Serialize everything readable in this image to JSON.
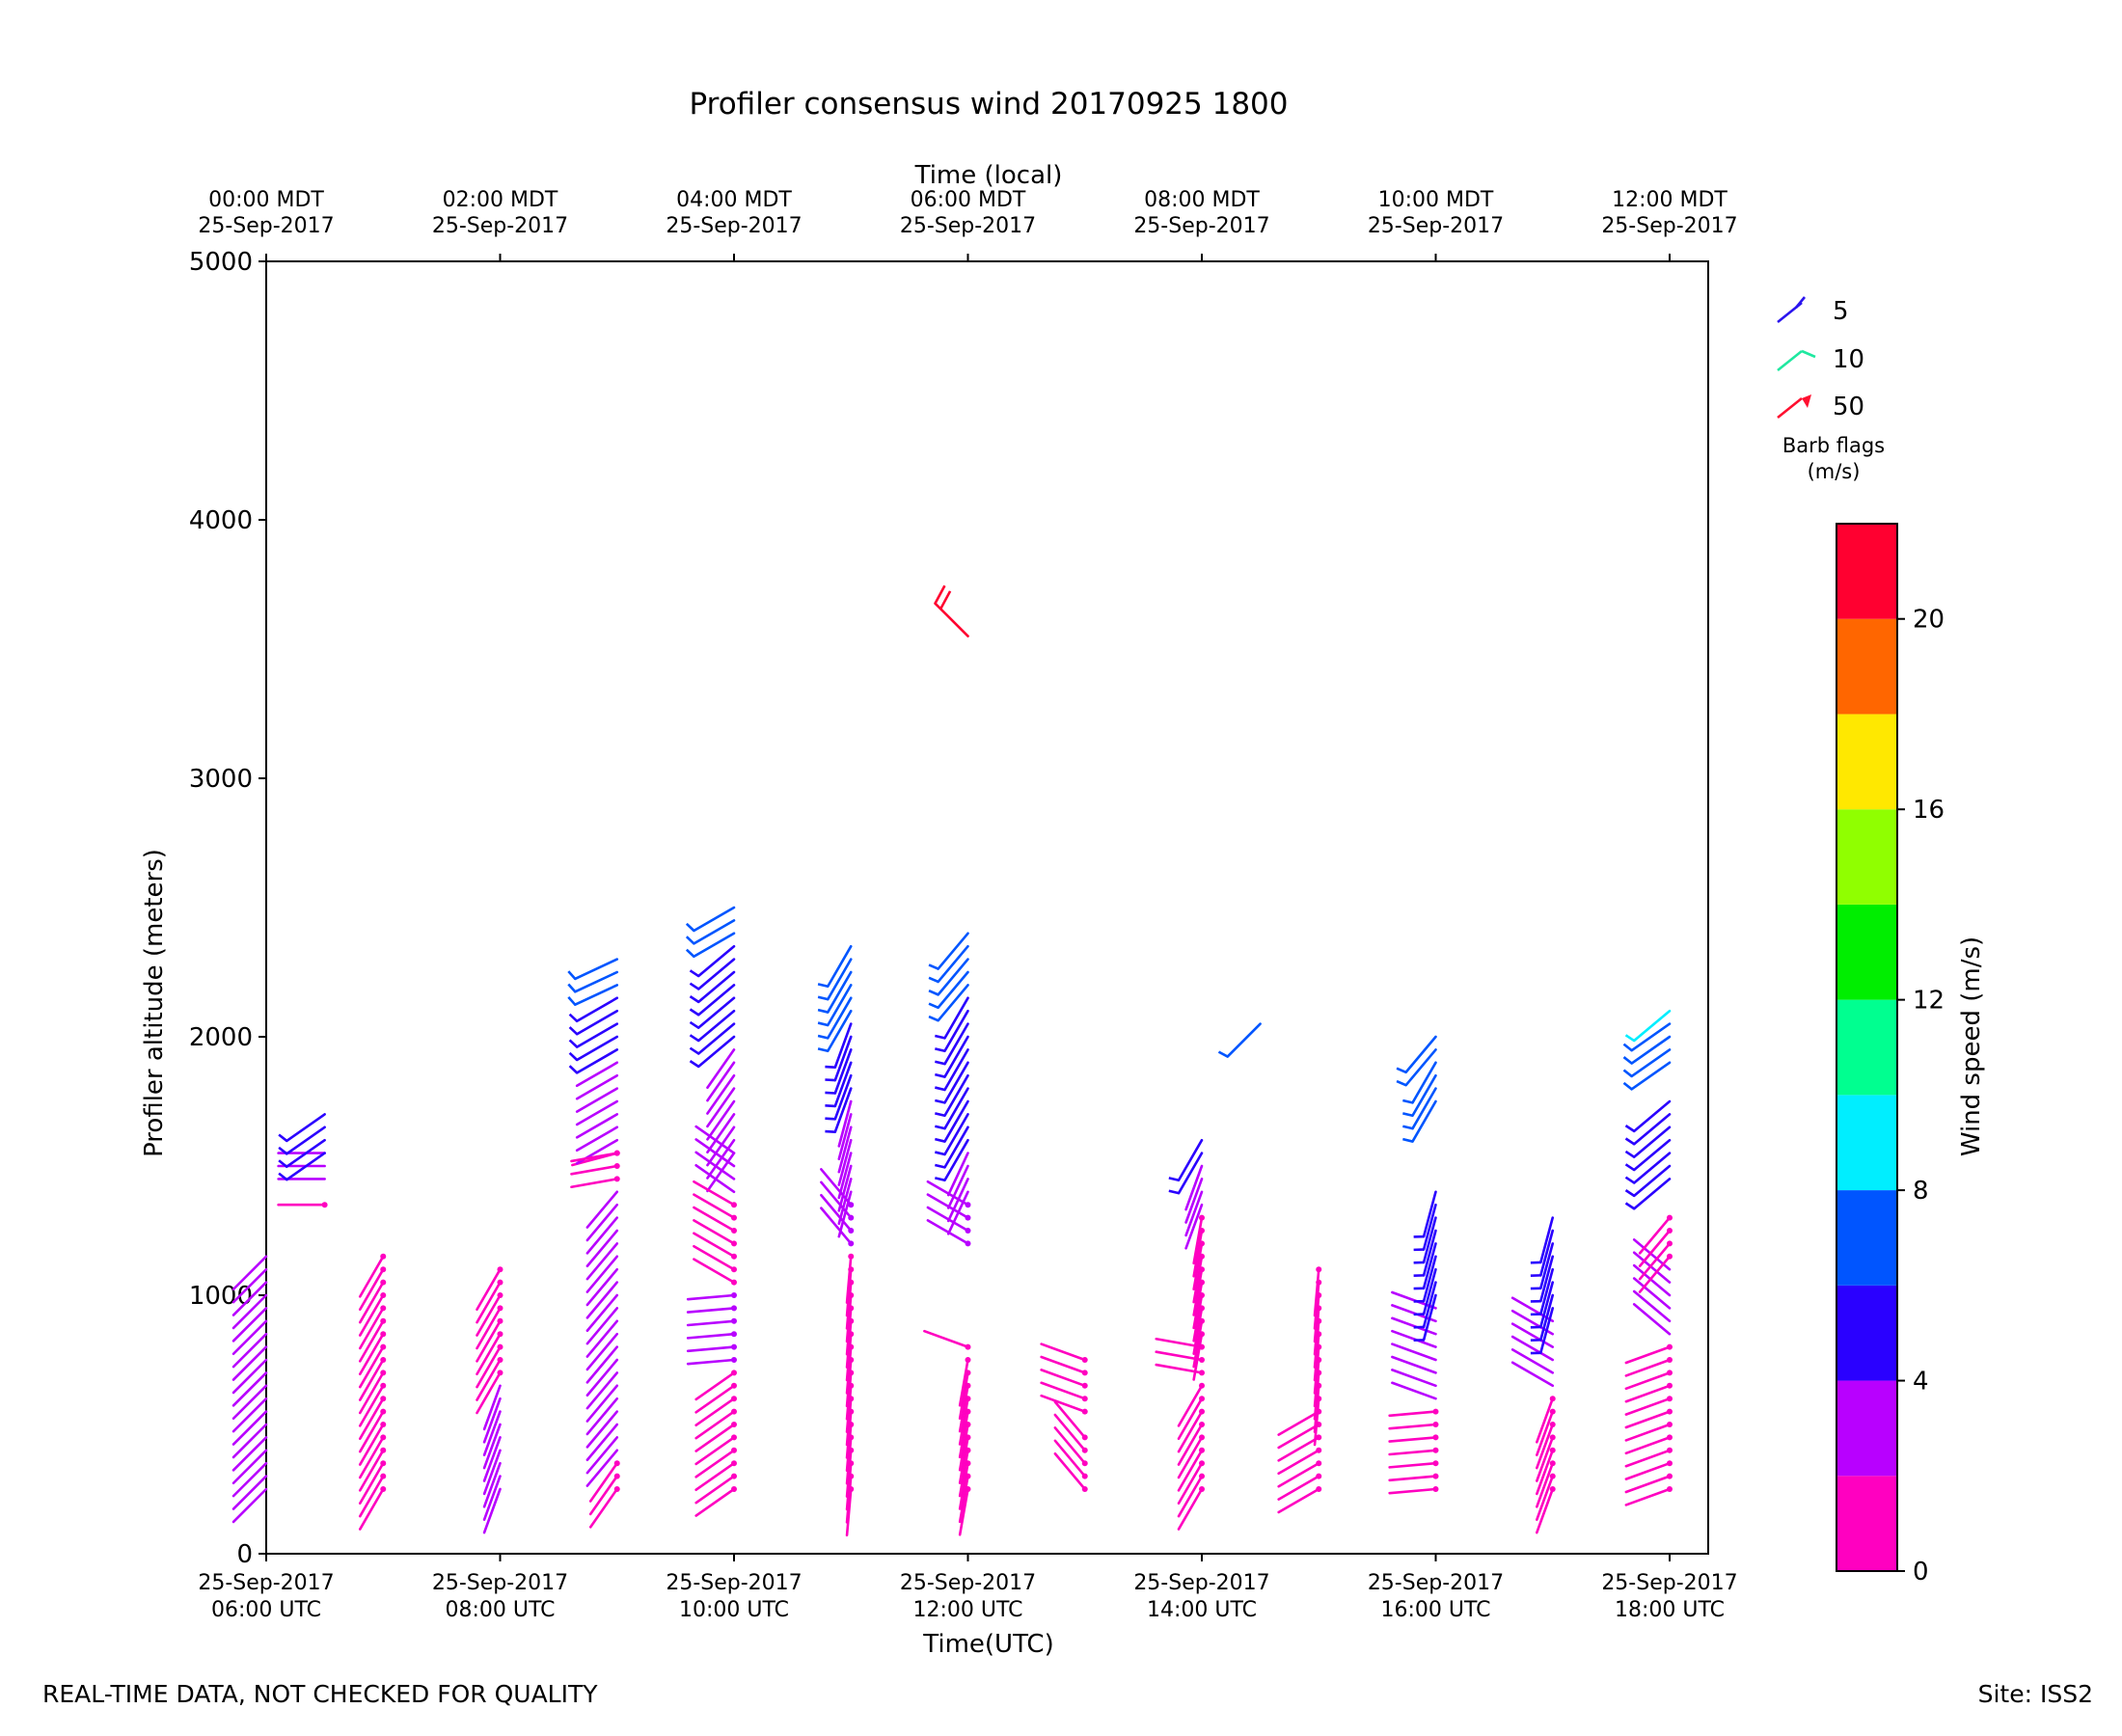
{
  "chart_data": {
    "type": "wind-barb",
    "title": "Profiler consensus wind 20170925 1800",
    "xlabel": "Time(UTC)",
    "ylabel": "Profiler altitude (meters)",
    "top_xlabel": "Time (local)",
    "xlim_hours_utc": [
      6.0,
      18.33
    ],
    "ylim": [
      0,
      5000
    ],
    "yticks": [
      0,
      1000,
      2000,
      3000,
      4000,
      5000
    ],
    "bottom_ticks": [
      {
        "hour": 6,
        "line1": "25-Sep-2017",
        "line2": "06:00 UTC"
      },
      {
        "hour": 8,
        "line1": "25-Sep-2017",
        "line2": "08:00 UTC"
      },
      {
        "hour": 10,
        "line1": "25-Sep-2017",
        "line2": "10:00 UTC"
      },
      {
        "hour": 12,
        "line1": "25-Sep-2017",
        "line2": "12:00 UTC"
      },
      {
        "hour": 14,
        "line1": "25-Sep-2017",
        "line2": "14:00 UTC"
      },
      {
        "hour": 16,
        "line1": "25-Sep-2017",
        "line2": "16:00 UTC"
      },
      {
        "hour": 18,
        "line1": "25-Sep-2017",
        "line2": "18:00 UTC"
      }
    ],
    "top_ticks": [
      {
        "hour": 6,
        "line1": "00:00 MDT",
        "line2": "25-Sep-2017"
      },
      {
        "hour": 8,
        "line1": "02:00 MDT",
        "line2": "25-Sep-2017"
      },
      {
        "hour": 10,
        "line1": "04:00 MDT",
        "line2": "25-Sep-2017"
      },
      {
        "hour": 12,
        "line1": "06:00 MDT",
        "line2": "25-Sep-2017"
      },
      {
        "hour": 14,
        "line1": "08:00 MDT",
        "line2": "25-Sep-2017"
      },
      {
        "hour": 16,
        "line1": "10:00 MDT",
        "line2": "25-Sep-2017"
      },
      {
        "hour": 18,
        "line1": "12:00 MDT",
        "line2": "25-Sep-2017"
      }
    ],
    "barb_flags": {
      "title_line1": "Barb flags",
      "title_line2": "(m/s)",
      "items": [
        {
          "label": "5",
          "color": "#2a14ee"
        },
        {
          "label": "10",
          "color": "#1fe8a0"
        },
        {
          "label": "50",
          "color": "#ff1030"
        }
      ]
    },
    "colorbar": {
      "label": "Wind speed (m/s)",
      "bins": [
        0,
        2,
        4,
        6,
        8,
        10,
        12,
        14,
        16,
        18,
        20,
        22
      ],
      "colors": [
        "#ff00c0",
        "#b800ff",
        "#2a00ff",
        "#0055ff",
        "#00eeff",
        "#00ff90",
        "#00ee00",
        "#90ff00",
        "#ffe800",
        "#ff6600",
        "#ff0030"
      ],
      "ticks": [
        0,
        4,
        8,
        12,
        16,
        20
      ]
    },
    "profiles": [
      {
        "hour": 6.0,
        "segments": [
          {
            "z0": 250,
            "z1": 1150,
            "speed": 3,
            "dir": 225,
            "dz": 50
          }
        ]
      },
      {
        "hour": 6.5,
        "segments": [
          {
            "z0": 1350,
            "z1": 1350,
            "speed": 1.5,
            "dir": 270,
            "dz": 100
          },
          {
            "z0": 1450,
            "z1": 1550,
            "speed": 3.5,
            "dir": 270,
            "dz": 50
          },
          {
            "z0": 1550,
            "z1": 1700,
            "speed": 5,
            "dir": 235,
            "dz": 50
          }
        ]
      },
      {
        "hour": 7.0,
        "segments": [
          {
            "z0": 250,
            "z1": 1150,
            "speed": 1.5,
            "dir": 210,
            "dz": 50
          }
        ]
      },
      {
        "hour": 8.0,
        "segments": [
          {
            "z0": 250,
            "z1": 650,
            "speed": 3,
            "dir": 200,
            "dz": 50
          },
          {
            "z0": 700,
            "z1": 1100,
            "speed": 1.5,
            "dir": 210,
            "dz": 50
          }
        ]
      },
      {
        "hour": 9.0,
        "segments": [
          {
            "z0": 1550,
            "z1": 1550,
            "speed": 1.5,
            "dir": 255,
            "dz": 50
          },
          {
            "z0": 1600,
            "z1": 1900,
            "speed": 3,
            "dir": 240,
            "dz": 50
          },
          {
            "z0": 1950,
            "z1": 2150,
            "speed": 5,
            "dir": 240,
            "dz": 50
          },
          {
            "z0": 2200,
            "z1": 2300,
            "speed": 7,
            "dir": 245,
            "dz": 50
          }
        ]
      },
      {
        "hour": 9.0,
        "segments": [
          {
            "z0": 250,
            "z1": 350,
            "speed": 1.5,
            "dir": 215,
            "dz": 50
          },
          {
            "z0": 400,
            "z1": 1400,
            "speed": 3,
            "dir": 220,
            "dz": 50
          },
          {
            "z0": 1450,
            "z1": 1550,
            "speed": 1.5,
            "dir": 260,
            "dz": 50
          }
        ]
      },
      {
        "hour": 10.0,
        "segments": [
          {
            "z0": 1550,
            "z1": 1950,
            "speed": 3,
            "dir": 215,
            "dz": 50
          },
          {
            "z0": 2000,
            "z1": 2350,
            "speed": 5,
            "dir": 230,
            "dz": 50
          },
          {
            "z0": 2400,
            "z1": 2500,
            "speed": 7,
            "dir": 240,
            "dz": 50
          }
        ]
      },
      {
        "hour": 10.0,
        "segments": [
          {
            "z0": 250,
            "z1": 700,
            "speed": 1.5,
            "dir": 235,
            "dz": 50
          },
          {
            "z0": 750,
            "z1": 1000,
            "speed": 2,
            "dir": 265,
            "dz": 50
          },
          {
            "z0": 1050,
            "z1": 1350,
            "speed": 1.5,
            "dir": 300,
            "dz": 50
          },
          {
            "z0": 1400,
            "z1": 1550,
            "speed": 3,
            "dir": 305,
            "dz": 50
          }
        ]
      },
      {
        "hour": 11.0,
        "segments": [
          {
            "z0": 250,
            "z1": 1150,
            "speed": 1.5,
            "dir": 185,
            "dz": 50
          },
          {
            "z0": 1200,
            "z1": 1350,
            "speed": 2,
            "dir": 320,
            "dz": 50
          },
          {
            "z0": 1400,
            "z1": 1750,
            "speed": 3,
            "dir": 195,
            "dz": 50
          },
          {
            "z0": 1800,
            "z1": 2050,
            "speed": 5,
            "dir": 200,
            "dz": 50
          },
          {
            "z0": 2100,
            "z1": 2350,
            "speed": 7,
            "dir": 210,
            "dz": 50
          }
        ]
      },
      {
        "hour": 12.0,
        "segments": [
          {
            "z0": 250,
            "z1": 750,
            "speed": 1.5,
            "dir": 190,
            "dz": 50
          },
          {
            "z0": 800,
            "z1": 800,
            "speed": 1.5,
            "dir": 290,
            "dz": 50
          },
          {
            "z0": 1200,
            "z1": 1350,
            "speed": 2,
            "dir": 300,
            "dz": 50
          },
          {
            "z0": 1400,
            "z1": 1550,
            "speed": 3,
            "dir": 205,
            "dz": 50
          },
          {
            "z0": 1600,
            "z1": 2150,
            "speed": 5,
            "dir": 210,
            "dz": 50
          },
          {
            "z0": 2200,
            "z1": 2400,
            "speed": 7,
            "dir": 220,
            "dz": 50
          },
          {
            "z0": 3550,
            "z1": 3550,
            "speed": 21,
            "dir": 315,
            "dz": 50
          }
        ]
      },
      {
        "hour": 13.0,
        "segments": [
          {
            "z0": 250,
            "z1": 450,
            "speed": 1.5,
            "dir": 320,
            "dz": 50
          },
          {
            "z0": 550,
            "z1": 750,
            "speed": 1.5,
            "dir": 290,
            "dz": 50
          }
        ]
      },
      {
        "hour": 14.0,
        "segments": [
          {
            "z0": 250,
            "z1": 650,
            "speed": 1.5,
            "dir": 210,
            "dz": 50
          },
          {
            "z0": 700,
            "z1": 800,
            "speed": 1.5,
            "dir": 280,
            "dz": 50
          },
          {
            "z0": 850,
            "z1": 1300,
            "speed": 1.5,
            "dir": 190,
            "dz": 50
          },
          {
            "z0": 1350,
            "z1": 1500,
            "speed": 3,
            "dir": 200,
            "dz": 50
          },
          {
            "z0": 1550,
            "z1": 1600,
            "speed": 5,
            "dir": 210,
            "dz": 50
          }
        ]
      },
      {
        "hour": 14.5,
        "segments": [
          {
            "z0": 2050,
            "z1": 2050,
            "speed": 7,
            "dir": 225,
            "dz": 50
          }
        ]
      },
      {
        "hour": 15.0,
        "segments": [
          {
            "z0": 250,
            "z1": 550,
            "speed": 1.5,
            "dir": 240,
            "dz": 50
          },
          {
            "z0": 600,
            "z1": 1100,
            "speed": 1.5,
            "dir": 185,
            "dz": 50
          }
        ]
      },
      {
        "hour": 16.0,
        "segments": [
          {
            "z0": 250,
            "z1": 550,
            "speed": 1.5,
            "dir": 265,
            "dz": 50
          },
          {
            "z0": 600,
            "z1": 950,
            "speed": 3,
            "dir": 290,
            "dz": 50
          },
          {
            "z0": 1000,
            "z1": 1400,
            "speed": 5,
            "dir": 195,
            "dz": 50
          },
          {
            "z0": 1750,
            "z1": 1900,
            "speed": 7,
            "dir": 210,
            "dz": 50
          },
          {
            "z0": 1950,
            "z1": 2000,
            "speed": 7,
            "dir": 220,
            "dz": 50
          }
        ]
      },
      {
        "hour": 17.0,
        "segments": [
          {
            "z0": 250,
            "z1": 600,
            "speed": 1.5,
            "dir": 200,
            "dz": 50
          },
          {
            "z0": 650,
            "z1": 900,
            "speed": 3,
            "dir": 300,
            "dz": 50
          },
          {
            "z0": 950,
            "z1": 1300,
            "speed": 5,
            "dir": 195,
            "dz": 50
          }
        ]
      },
      {
        "hour": 18.0,
        "segments": [
          {
            "z0": 250,
            "z1": 800,
            "speed": 1.5,
            "dir": 250,
            "dz": 50
          },
          {
            "z0": 850,
            "z1": 1100,
            "speed": 3,
            "dir": 310,
            "dz": 50
          },
          {
            "z0": 1150,
            "z1": 1300,
            "speed": 1.5,
            "dir": 220,
            "dz": 50
          },
          {
            "z0": 1450,
            "z1": 1750,
            "speed": 5,
            "dir": 230,
            "dz": 50
          },
          {
            "z0": 1900,
            "z1": 2050,
            "speed": 7,
            "dir": 235,
            "dz": 50
          },
          {
            "z0": 2100,
            "z1": 2100,
            "speed": 9,
            "dir": 230,
            "dz": 50
          }
        ]
      }
    ]
  },
  "footer": {
    "left": "REAL-TIME DATA, NOT CHECKED FOR QUALITY",
    "right": "Site: ISS2"
  }
}
